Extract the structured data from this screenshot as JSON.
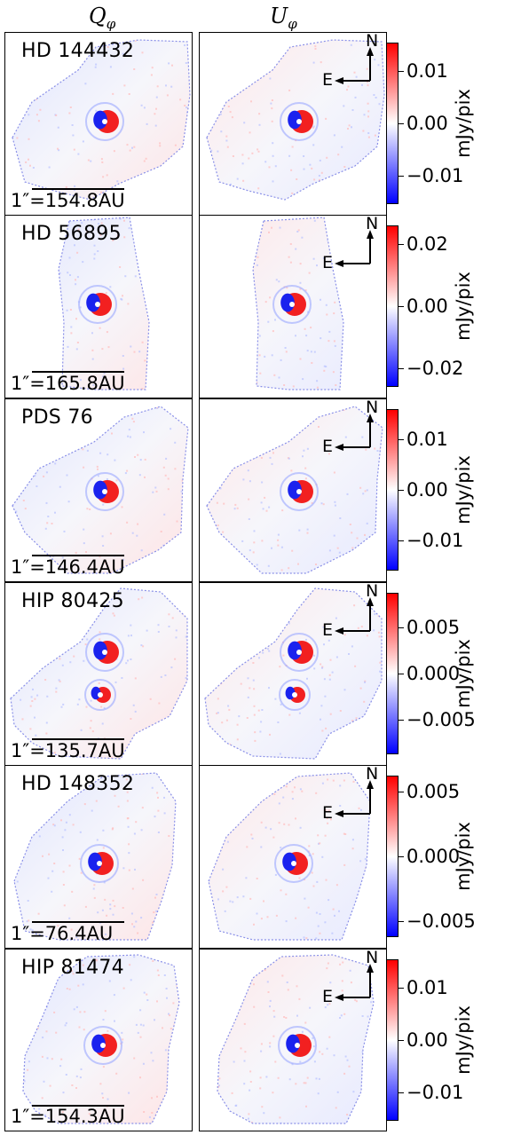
{
  "columns": [
    {
      "letter": "Q",
      "sub": "φ"
    },
    {
      "letter": "U",
      "sub": "φ"
    }
  ],
  "compass": {
    "north": "N",
    "east": "E"
  },
  "colorbar_unit": "mJy/pix",
  "colormap": {
    "positive": "#ff0000",
    "zero": "#ffffff",
    "negative": "#0000ff"
  },
  "rows": [
    {
      "star": "HD 144432",
      "scale": "1″=154.8AU",
      "ticks": [
        "0.01",
        "0.00",
        "−0.01"
      ],
      "cbar_range": [
        -0.0155,
        0.0155
      ],
      "tick_values": [
        0.01,
        0.0,
        -0.01
      ]
    },
    {
      "star": "HD 56895",
      "scale": "1″=165.8AU",
      "ticks": [
        "0.02",
        "0.00",
        "−0.02"
      ],
      "cbar_range": [
        -0.026,
        0.026
      ],
      "tick_values": [
        0.02,
        0.0,
        -0.02
      ]
    },
    {
      "star": "PDS 76",
      "scale": "1″=146.4AU",
      "ticks": [
        "0.01",
        "0.00",
        "−0.01"
      ],
      "cbar_range": [
        -0.016,
        0.016
      ],
      "tick_values": [
        0.01,
        0.0,
        -0.01
      ]
    },
    {
      "star": "HIP 80425",
      "scale": "1″=135.7AU",
      "ticks": [
        "0.005",
        "0.000",
        "−0.005"
      ],
      "cbar_range": [
        -0.0088,
        0.0088
      ],
      "tick_values": [
        0.005,
        0.0,
        -0.005
      ]
    },
    {
      "star": "HD 148352",
      "scale": "1″=76.4AU",
      "ticks": [
        "0.005",
        "0.000",
        "−0.005"
      ],
      "cbar_range": [
        -0.0062,
        0.0062
      ],
      "tick_values": [
        0.005,
        0.0,
        -0.005
      ]
    },
    {
      "star": "HIP 81474",
      "scale": "1″=154.3AU",
      "ticks": [
        "0.01",
        "0.00",
        "−0.01"
      ],
      "cbar_range": [
        -0.0155,
        0.0155
      ],
      "tick_values": [
        0.01,
        0.0,
        -0.01
      ]
    }
  ]
}
